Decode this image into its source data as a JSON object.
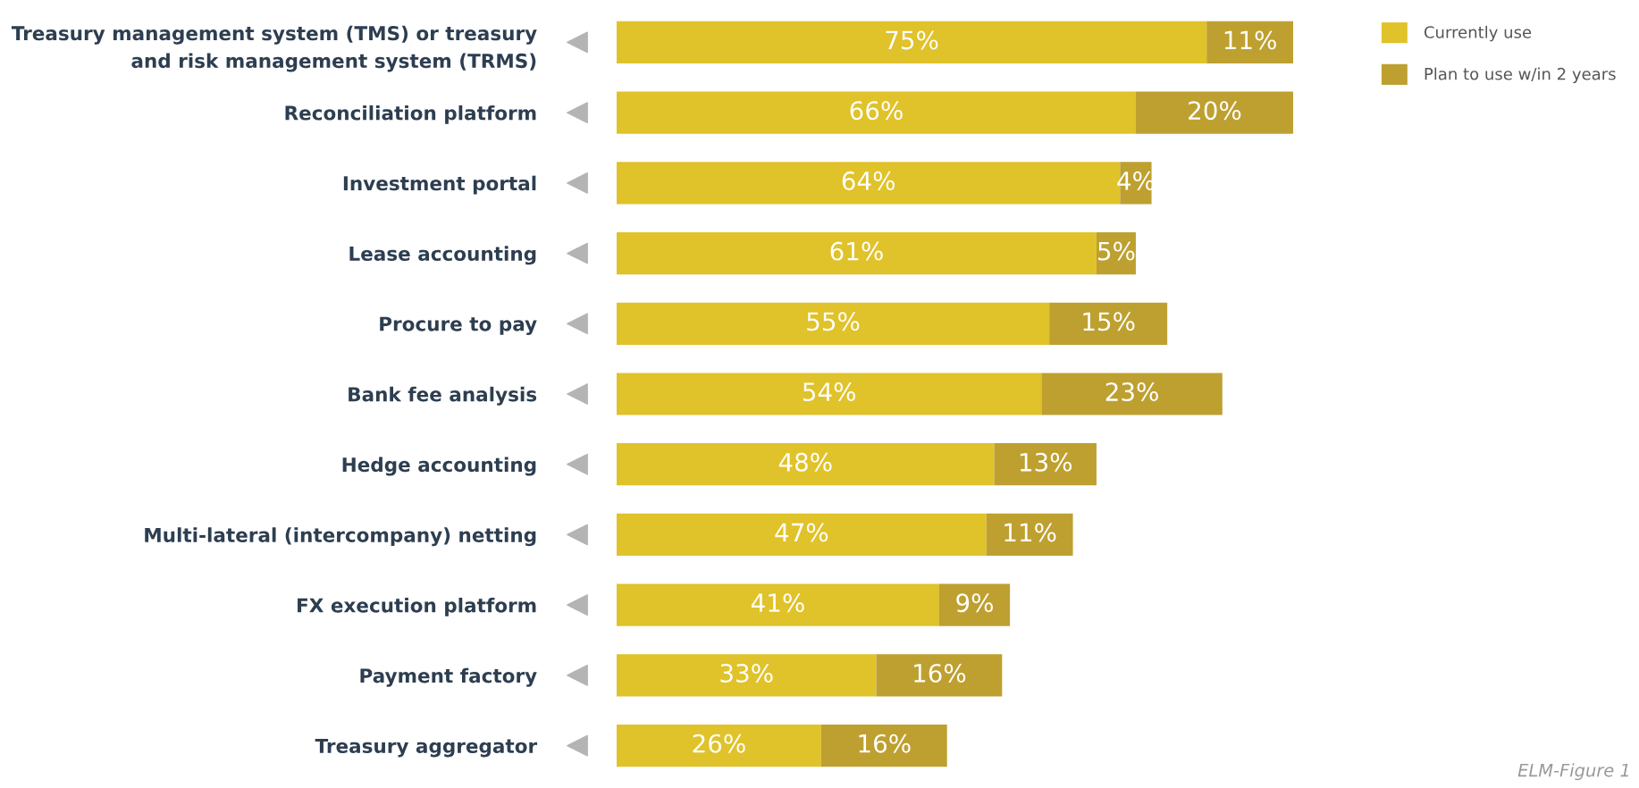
{
  "chart_data": {
    "type": "bar",
    "orientation": "horizontal",
    "stacked": true,
    "legend": "top right",
    "categories": [
      "Treasury management system (TMS) or treasury\nand risk management system (TRMS)",
      "Reconciliation platform",
      "Investment portal",
      "Lease accounting",
      "Procure to pay",
      "Bank fee analysis",
      "Hedge accounting",
      "Multi-lateral (intercompany) netting",
      "FX execution platform",
      "Payment factory",
      "Treasury aggregator"
    ],
    "series": [
      {
        "name": "Currently use",
        "color": "#e0c22a",
        "values": [
          75,
          66,
          64,
          61,
          55,
          54,
          48,
          47,
          41,
          33,
          26
        ],
        "value_labels": [
          "75%",
          "66%",
          "64%",
          "61%",
          "55%",
          "54%",
          "48%",
          "47%",
          "41%",
          "33%",
          "26%"
        ]
      },
      {
        "name": "Plan to use w/in 2 years",
        "color": "#bea030",
        "values": [
          11,
          20,
          4,
          5,
          15,
          23,
          13,
          11,
          9,
          16,
          16
        ],
        "value_labels": [
          "11%",
          "20%",
          "4%",
          "5%",
          "15%",
          "23%",
          "13%",
          "11%",
          "9%",
          "16%",
          "16%"
        ]
      }
    ],
    "annotations": [
      "ELM-Figure 1"
    ]
  }
}
